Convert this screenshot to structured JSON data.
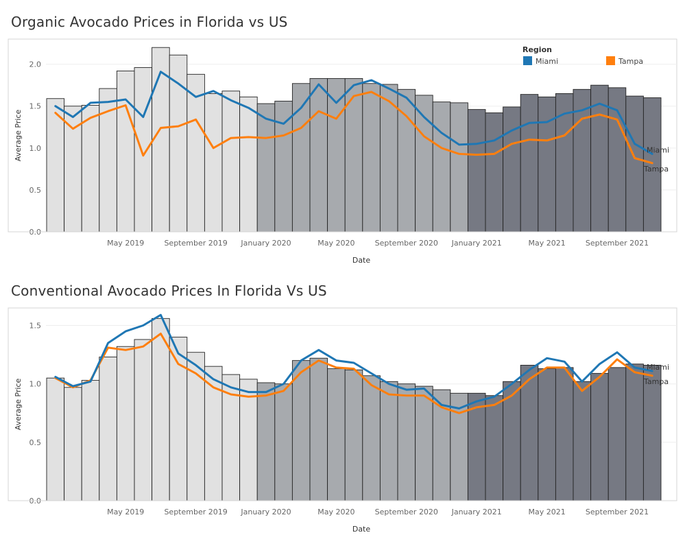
{
  "colors": {
    "miami": "#1f77b4",
    "tampa": "#ff7f0e",
    "bar_2019": "#e1e1e1",
    "bar_2020": "#a7aaae",
    "bar_2021": "#767983",
    "bar_stroke": "#222222"
  },
  "legend": {
    "title": "Region",
    "items": [
      {
        "label": "Miami",
        "color": "#1f77b4"
      },
      {
        "label": "Tampa",
        "color": "#ff7f0e"
      }
    ]
  },
  "chart_data": [
    {
      "type": "bar",
      "title": "Organic Avocado Prices in Florida vs US",
      "xlabel": "Date",
      "ylabel": "Average Price",
      "ylim": [
        0,
        2.3
      ],
      "yticks": [
        0.0,
        0.5,
        1.0,
        1.5,
        2.0
      ],
      "ytick_labels": [
        "0.0",
        "0.5",
        "1.0",
        "1.5",
        "2.0"
      ],
      "x_tick_labels": [
        "May 2019",
        "September 2019",
        "January 2020",
        "May 2020",
        "September 2020",
        "January 2021",
        "May 2021",
        "September 2021"
      ],
      "categories": [
        "2019-01",
        "2019-02",
        "2019-03",
        "2019-04",
        "2019-05",
        "2019-06",
        "2019-07",
        "2019-08",
        "2019-09",
        "2019-10",
        "2019-11",
        "2019-12",
        "2020-01",
        "2020-02",
        "2020-03",
        "2020-04",
        "2020-05",
        "2020-06",
        "2020-07",
        "2020-08",
        "2020-09",
        "2020-10",
        "2020-11",
        "2020-12",
        "2021-01",
        "2021-02",
        "2021-03",
        "2021-04",
        "2021-05",
        "2021-06",
        "2021-07",
        "2021-08",
        "2021-09",
        "2021-10",
        "2021-11"
      ],
      "bar_series": {
        "name": "US",
        "values": [
          1.59,
          1.5,
          1.51,
          1.71,
          1.92,
          1.96,
          2.2,
          2.11,
          1.88,
          1.65,
          1.68,
          1.61,
          1.53,
          1.56,
          1.77,
          1.83,
          1.83,
          1.83,
          1.77,
          1.76,
          1.7,
          1.63,
          1.55,
          1.54,
          1.46,
          1.42,
          1.49,
          1.64,
          1.61,
          1.65,
          1.7,
          1.75,
          1.72,
          1.62,
          1.6
        ]
      },
      "series": [
        {
          "name": "Miami",
          "values": [
            1.5,
            1.37,
            1.54,
            1.55,
            1.58,
            1.37,
            1.91,
            1.77,
            1.61,
            1.68,
            1.57,
            1.48,
            1.35,
            1.29,
            1.48,
            1.76,
            1.54,
            1.75,
            1.81,
            1.71,
            1.6,
            1.37,
            1.18,
            1.04,
            1.05,
            1.09,
            1.21,
            1.3,
            1.31,
            1.41,
            1.45,
            1.53,
            1.45,
            1.05,
            0.93
          ]
        },
        {
          "name": "Tampa",
          "values": [
            1.42,
            1.23,
            1.36,
            1.44,
            1.51,
            0.91,
            1.24,
            1.26,
            1.34,
            1.0,
            1.12,
            1.13,
            1.12,
            1.15,
            1.24,
            1.44,
            1.35,
            1.62,
            1.67,
            1.56,
            1.38,
            1.14,
            1.0,
            0.93,
            0.92,
            0.93,
            1.05,
            1.1,
            1.09,
            1.15,
            1.35,
            1.4,
            1.34,
            0.88,
            0.82
          ]
        }
      ],
      "end_labels": [
        "Miami",
        "Tampa"
      ]
    },
    {
      "type": "bar",
      "title": "Conventional Avocado Prices In Florida Vs US",
      "xlabel": "Date",
      "ylabel": "Average Price",
      "ylim": [
        0,
        1.65
      ],
      "yticks": [
        0.0,
        0.5,
        1.0,
        1.5
      ],
      "ytick_labels": [
        "0.0",
        "0.5",
        "1.0",
        "1.5"
      ],
      "x_tick_labels": [
        "May 2019",
        "September 2019",
        "January 2020",
        "May 2020",
        "September 2020",
        "January 2021",
        "May 2021",
        "September 2021"
      ],
      "categories": [
        "2019-01",
        "2019-02",
        "2019-03",
        "2019-04",
        "2019-05",
        "2019-06",
        "2019-07",
        "2019-08",
        "2019-09",
        "2019-10",
        "2019-11",
        "2019-12",
        "2020-01",
        "2020-02",
        "2020-03",
        "2020-04",
        "2020-05",
        "2020-06",
        "2020-07",
        "2020-08",
        "2020-09",
        "2020-10",
        "2020-11",
        "2020-12",
        "2021-01",
        "2021-02",
        "2021-03",
        "2021-04",
        "2021-05",
        "2021-06",
        "2021-07",
        "2021-08",
        "2021-09",
        "2021-10",
        "2021-11"
      ],
      "bar_series": {
        "name": "US",
        "values": [
          1.05,
          0.97,
          1.03,
          1.23,
          1.32,
          1.38,
          1.56,
          1.4,
          1.27,
          1.15,
          1.08,
          1.04,
          1.01,
          1.0,
          1.2,
          1.22,
          1.13,
          1.12,
          1.07,
          1.02,
          1.0,
          0.98,
          0.95,
          0.92,
          0.92,
          0.9,
          1.02,
          1.16,
          1.13,
          1.14,
          1.02,
          1.09,
          1.14,
          1.17,
          1.16
        ]
      },
      "series": [
        {
          "name": "Miami",
          "values": [
            1.06,
            0.98,
            1.02,
            1.35,
            1.45,
            1.5,
            1.59,
            1.26,
            1.16,
            1.04,
            0.97,
            0.93,
            0.93,
            1.0,
            1.2,
            1.29,
            1.2,
            1.18,
            1.09,
            1.0,
            0.95,
            0.96,
            0.82,
            0.79,
            0.85,
            0.89,
            1.0,
            1.12,
            1.22,
            1.19,
            1.02,
            1.17,
            1.27,
            1.14,
            1.11
          ]
        },
        {
          "name": "Tampa",
          "values": [
            1.05,
            0.97,
            1.03,
            1.31,
            1.29,
            1.32,
            1.43,
            1.17,
            1.09,
            0.97,
            0.91,
            0.89,
            0.9,
            0.94,
            1.1,
            1.2,
            1.14,
            1.13,
            0.99,
            0.91,
            0.9,
            0.9,
            0.8,
            0.75,
            0.8,
            0.82,
            0.9,
            1.04,
            1.14,
            1.14,
            0.94,
            1.06,
            1.21,
            1.1,
            1.07
          ]
        }
      ],
      "end_labels": [
        "Miami",
        "Tampa"
      ]
    }
  ]
}
